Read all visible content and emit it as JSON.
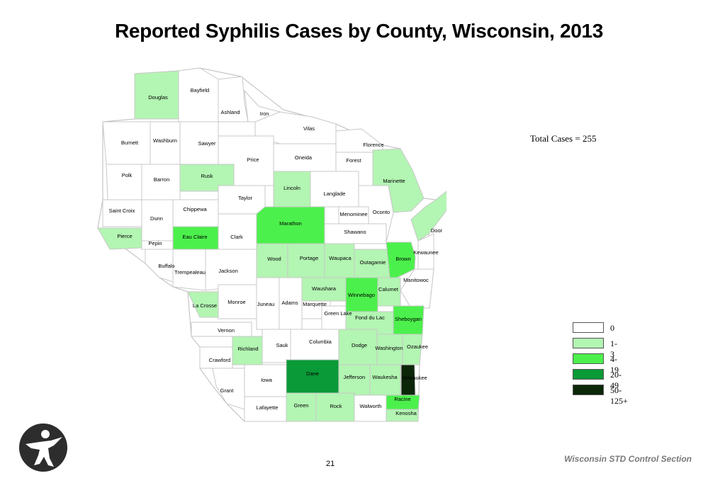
{
  "title": "Reported Syphilis Cases by County, Wisconsin, 2013",
  "total_cases": "Total Cases = 255",
  "legend": [
    {
      "label": "0",
      "color": "#ffffff"
    },
    {
      "label": "1-3",
      "color": "#b3f5b3"
    },
    {
      "label": "4-19",
      "color": "#4cf04c"
    },
    {
      "label": "20-49",
      "color": "#0a9a37"
    },
    {
      "label": "50-125+",
      "color": "#0b2608"
    }
  ],
  "page_number": "21",
  "footer": "Wisconsin STD Control Section",
  "logo_icon": "person-figure-icon",
  "counties": [
    {
      "name": "Douglas",
      "category": "1-3"
    },
    {
      "name": "Bayfield",
      "category": "0"
    },
    {
      "name": "Ashland",
      "category": "0"
    },
    {
      "name": "Iron",
      "category": "0"
    },
    {
      "name": "Vilas",
      "category": "0"
    },
    {
      "name": "Florence",
      "category": "0"
    },
    {
      "name": "Burnett",
      "category": "0"
    },
    {
      "name": "Washburn",
      "category": "0"
    },
    {
      "name": "Sawyer",
      "category": "0"
    },
    {
      "name": "Price",
      "category": "0"
    },
    {
      "name": "Oneida",
      "category": "0"
    },
    {
      "name": "Forest",
      "category": "0"
    },
    {
      "name": "Marinette",
      "category": "1-3"
    },
    {
      "name": "Polk",
      "category": "0"
    },
    {
      "name": "Barron",
      "category": "0"
    },
    {
      "name": "Rusk",
      "category": "1-3"
    },
    {
      "name": "Lincoln",
      "category": "1-3"
    },
    {
      "name": "Taylor",
      "category": "0"
    },
    {
      "name": "Langlade",
      "category": "0"
    },
    {
      "name": "Saint Croix",
      "category": "0"
    },
    {
      "name": "Dunn",
      "category": "0"
    },
    {
      "name": "Chippewa",
      "category": "0"
    },
    {
      "name": "Menominee",
      "category": "0"
    },
    {
      "name": "Oconto",
      "category": "0"
    },
    {
      "name": "Door",
      "category": "1-3"
    },
    {
      "name": "Pierce",
      "category": "1-3"
    },
    {
      "name": "Pepin",
      "category": "0"
    },
    {
      "name": "Eau Claire",
      "category": "4-19"
    },
    {
      "name": "Clark",
      "category": "0"
    },
    {
      "name": "Marathon",
      "category": "4-19"
    },
    {
      "name": "Shawano",
      "category": "0"
    },
    {
      "name": "Kewaunee",
      "category": "0"
    },
    {
      "name": "Buffalo",
      "category": "0"
    },
    {
      "name": "Trempealeau",
      "category": "0"
    },
    {
      "name": "Jackson",
      "category": "0"
    },
    {
      "name": "Wood",
      "category": "1-3"
    },
    {
      "name": "Portage",
      "category": "1-3"
    },
    {
      "name": "Waupaca",
      "category": "1-3"
    },
    {
      "name": "Outagamie",
      "category": "1-3"
    },
    {
      "name": "Brown",
      "category": "4-19"
    },
    {
      "name": "Manitowoc",
      "category": "0"
    },
    {
      "name": "La Crosse",
      "category": "1-3"
    },
    {
      "name": "Monroe",
      "category": "0"
    },
    {
      "name": "Juneau",
      "category": "0"
    },
    {
      "name": "Adams",
      "category": "0"
    },
    {
      "name": "Waushara",
      "category": "1-3"
    },
    {
      "name": "Marquette",
      "category": "0"
    },
    {
      "name": "Winnebago",
      "category": "4-19"
    },
    {
      "name": "Calumet",
      "category": "1-3"
    },
    {
      "name": "Green Lake",
      "category": "0"
    },
    {
      "name": "Fond du Lac",
      "category": "1-3"
    },
    {
      "name": "Sheboygan",
      "category": "4-19"
    },
    {
      "name": "Vernon",
      "category": "0"
    },
    {
      "name": "Richland",
      "category": "1-3"
    },
    {
      "name": "Sauk",
      "category": "0"
    },
    {
      "name": "Columbia",
      "category": "0"
    },
    {
      "name": "Dodge",
      "category": "1-3"
    },
    {
      "name": "Washington",
      "category": "1-3"
    },
    {
      "name": "Ozaukee",
      "category": "1-3"
    },
    {
      "name": "Crawford",
      "category": "0"
    },
    {
      "name": "Dane",
      "category": "20-49"
    },
    {
      "name": "Jefferson",
      "category": "1-3"
    },
    {
      "name": "Waukesha",
      "category": "1-3"
    },
    {
      "name": "Milwaukee",
      "category": "50-125+"
    },
    {
      "name": "Grant",
      "category": "0"
    },
    {
      "name": "Iowa",
      "category": "0"
    },
    {
      "name": "Lafayette",
      "category": "0"
    },
    {
      "name": "Green",
      "category": "1-3"
    },
    {
      "name": "Rock",
      "category": "1-3"
    },
    {
      "name": "Walworth",
      "category": "0"
    },
    {
      "name": "Racine",
      "category": "4-19"
    },
    {
      "name": "Kenosha",
      "category": "1-3"
    }
  ]
}
